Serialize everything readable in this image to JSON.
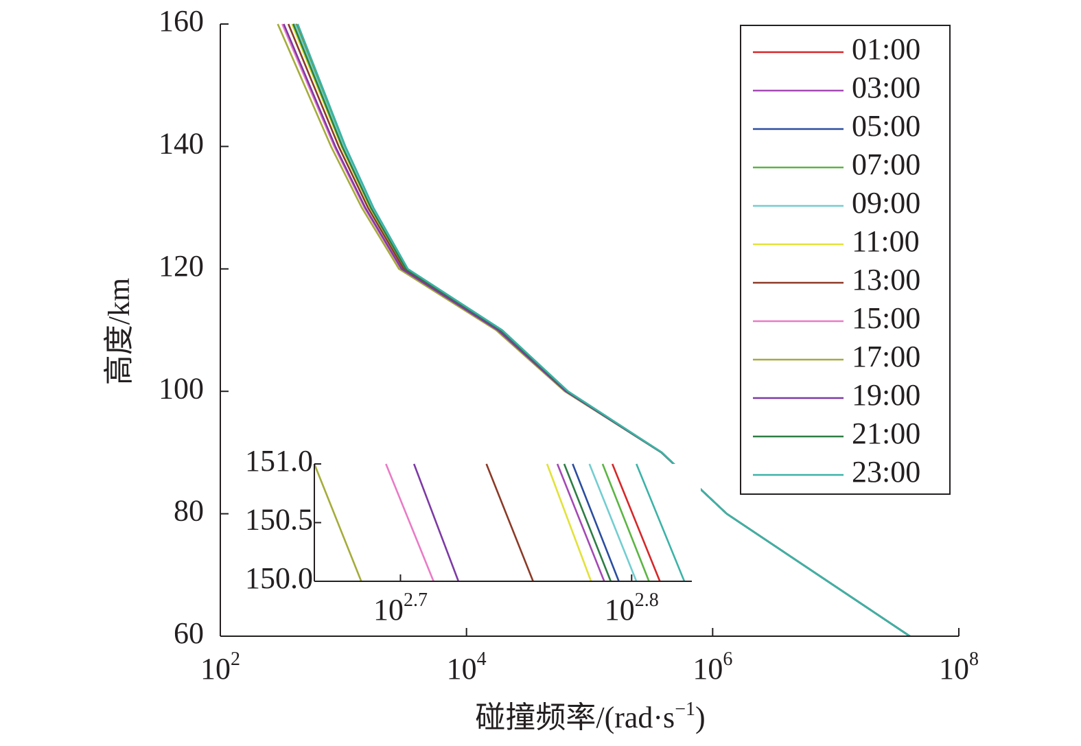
{
  "chart_data": [
    {
      "type": "line",
      "xlabel": "碰撞频率/(rad·s⁻¹)",
      "xlabel_main": "碰撞频率/(rad·s",
      "xlabel_exp": "−1",
      "xlabel_close": ")",
      "ylabel": "高度/km",
      "xscale": "log",
      "xlim": [
        100,
        100000000
      ],
      "ylim": [
        60,
        160
      ],
      "xtick_bases": [
        "10",
        "10",
        "10",
        "10"
      ],
      "xtick_exps": [
        "2",
        "4",
        "6",
        "8"
      ],
      "xtick_values": [
        100,
        10000,
        1000000,
        100000000
      ],
      "yticks": [
        60,
        80,
        100,
        120,
        140,
        160
      ],
      "ytick_labels": [
        "60",
        "80",
        "100",
        "120",
        "140",
        "160"
      ],
      "legend_position": "top-right",
      "grid": false,
      "profile_shared": {
        "comment_free": true,
        "points": [
          [
            40000000,
            60
          ],
          [
            1300000,
            80
          ],
          [
            380000,
            90
          ],
          [
            60000,
            100
          ],
          [
            16000,
            110
          ],
          [
            2500,
            120
          ],
          [
            1200,
            130
          ],
          [
            650,
            140
          ],
          [
            380,
            150
          ]
        ]
      },
      "series": [
        {
          "name": "01:00",
          "color": "#d62728",
          "x_at_150": 649
        },
        {
          "name": "03:00",
          "color": "#a349b4",
          "x_at_150": 614
        },
        {
          "name": "05:00",
          "color": "#2b4da0",
          "x_at_150": 623
        },
        {
          "name": "07:00",
          "color": "#5bb543",
          "x_at_150": 642
        },
        {
          "name": "09:00",
          "color": "#72cdd0",
          "x_at_150": 634
        },
        {
          "name": "11:00",
          "color": "#e2e23a",
          "x_at_150": 606
        },
        {
          "name": "13:00",
          "color": "#8b3a26",
          "x_at_150": 572
        },
        {
          "name": "15:00",
          "color": "#ea7bc6",
          "x_at_150": 518
        },
        {
          "name": "17:00",
          "color": "#a4ac3a",
          "x_at_150": 482
        },
        {
          "name": "19:00",
          "color": "#7d3aa5",
          "x_at_150": 531
        },
        {
          "name": "21:00",
          "color": "#2d7d44",
          "x_at_150": 618
        },
        {
          "name": "23:00",
          "color": "#3bb3a8",
          "x_at_150": 665
        }
      ]
    },
    {
      "type": "line",
      "xscale": "log",
      "xlim": [
        460,
        670
      ],
      "ylim": [
        150,
        151
      ],
      "xtick_bases": [
        "10",
        "10"
      ],
      "xtick_exps": [
        "2.7",
        "2.8"
      ],
      "xtick_values": [
        501.2,
        631.0
      ],
      "yticks": [
        150.0,
        150.5,
        151.0
      ],
      "ytick_labels": [
        "150.0",
        "150.5",
        "151.0"
      ],
      "series": [
        {
          "name": "17:00",
          "color": "#a4ac3a",
          "x_at_151": 460,
          "x_at_150": 482
        },
        {
          "name": "15:00",
          "color": "#ea7bc6",
          "x_at_151": 494,
          "x_at_150": 518
        },
        {
          "name": "19:00",
          "color": "#7d3aa5",
          "x_at_151": 508,
          "x_at_150": 531
        },
        {
          "name": "13:00",
          "color": "#8b3a26",
          "x_at_151": 546,
          "x_at_150": 572
        },
        {
          "name": "11:00",
          "color": "#e2e23a",
          "x_at_151": 580,
          "x_at_150": 606
        },
        {
          "name": "03:00",
          "color": "#a349b4",
          "x_at_151": 586,
          "x_at_150": 614
        },
        {
          "name": "21:00",
          "color": "#2d7d44",
          "x_at_151": 590,
          "x_at_150": 618
        },
        {
          "name": "05:00",
          "color": "#2b4da0",
          "x_at_151": 595,
          "x_at_150": 623
        },
        {
          "name": "09:00",
          "color": "#72cdd0",
          "x_at_151": 605,
          "x_at_150": 634
        },
        {
          "name": "07:00",
          "color": "#5bb543",
          "x_at_151": 613,
          "x_at_150": 642
        },
        {
          "name": "01:00",
          "color": "#d62728",
          "x_at_151": 619,
          "x_at_150": 649
        },
        {
          "name": "23:00",
          "color": "#3bb3a8",
          "x_at_151": 634,
          "x_at_150": 665
        }
      ]
    }
  ]
}
